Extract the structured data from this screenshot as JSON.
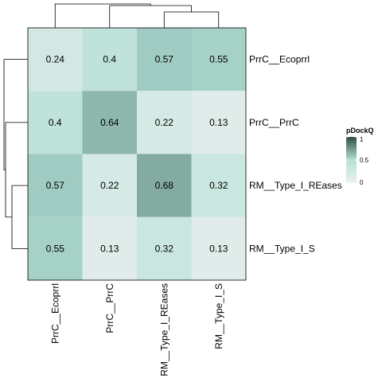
{
  "chart_data": {
    "type": "heatmap",
    "rows": [
      "PrrC__Ecoprrl",
      "PrrC__PrrC",
      "RM__Type_I_REases",
      "RM__Type_I_S"
    ],
    "cols": [
      "PrrC__Ecoprrl",
      "PrrC__PrrC",
      "RM__Type_I_REases",
      "RM__Type_I_S"
    ],
    "values": [
      [
        0.24,
        0.4,
        0.57,
        0.55
      ],
      [
        0.4,
        0.64,
        0.22,
        0.13
      ],
      [
        0.57,
        0.22,
        0.68,
        0.32
      ],
      [
        0.55,
        0.13,
        0.32,
        0.13
      ]
    ],
    "color_scale": {
      "min": 0,
      "mid": 0.5,
      "max": 1,
      "low_color": "#f0f0f0",
      "mid_color": "#b3e0d6",
      "high_color": "#2e4d44"
    },
    "legend": {
      "title": "pDockQ",
      "ticks": [
        {
          "value": 1,
          "label": "1"
        },
        {
          "value": 0.5,
          "label": "0.5"
        },
        {
          "value": 0,
          "label": "0"
        }
      ]
    },
    "dendrogram": {
      "col_order": [
        "PrrC__Ecoprrl",
        "PrrC__PrrC",
        "RM__Type_I_REases",
        "RM__Type_I_S"
      ],
      "row_order": [
        "PrrC__Ecoprrl",
        "PrrC__PrrC",
        "RM__Type_I_REases",
        "RM__Type_I_S"
      ]
    }
  }
}
